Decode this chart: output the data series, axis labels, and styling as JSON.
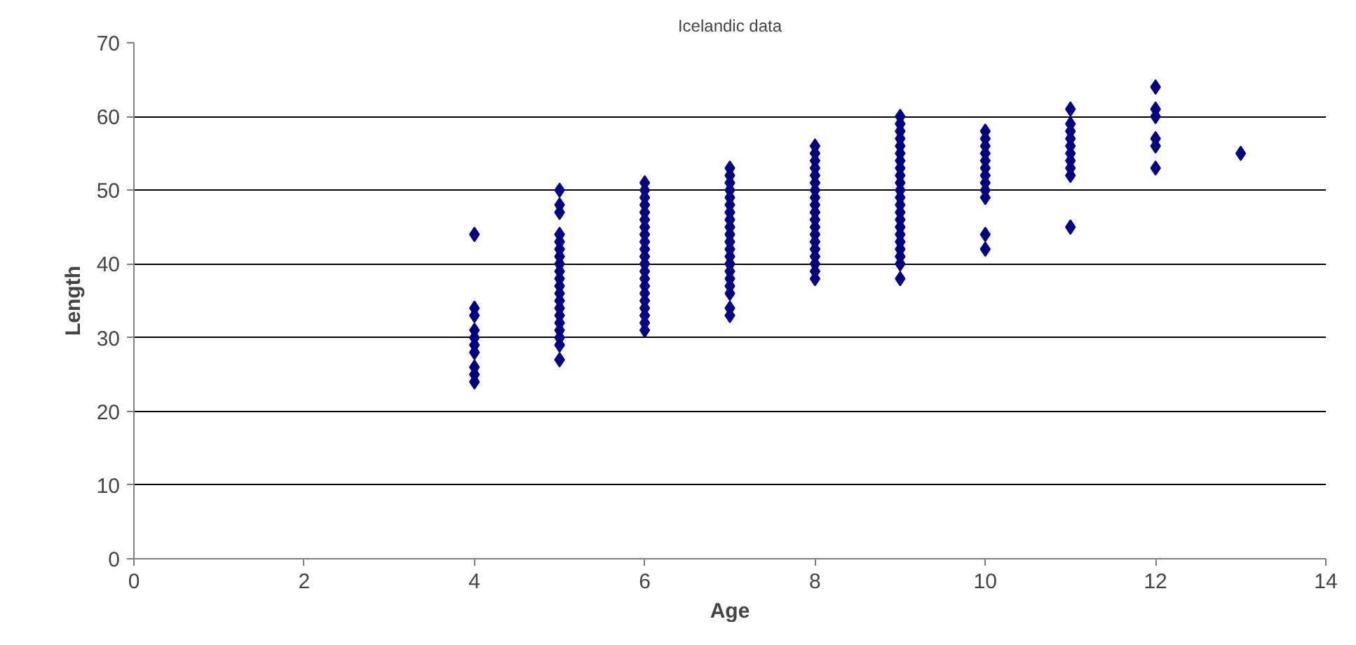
{
  "chart_data": {
    "type": "scatter",
    "title": "Icelandic data",
    "xlabel": "Age",
    "ylabel": "Length",
    "xlim": [
      0,
      14
    ],
    "xticks": [
      0,
      2,
      4,
      6,
      8,
      10,
      12,
      14
    ],
    "ylim": [
      0,
      70
    ],
    "yticks": [
      0,
      10,
      20,
      30,
      40,
      50,
      60,
      70
    ],
    "grid": "y",
    "marker": "diamond",
    "series": [
      {
        "color": "#000080",
        "x": [
          4,
          4,
          4,
          4,
          4,
          4,
          4,
          4,
          4,
          4,
          5,
          5,
          5,
          5,
          5,
          5,
          5,
          5,
          5,
          5,
          5,
          5,
          5,
          5,
          5,
          5,
          5,
          5,
          5,
          5,
          6,
          6,
          6,
          6,
          6,
          6,
          6,
          6,
          6,
          6,
          6,
          6,
          6,
          6,
          6,
          6,
          6,
          6,
          6,
          6,
          6,
          7,
          7,
          7,
          7,
          7,
          7,
          7,
          7,
          7,
          7,
          7,
          7,
          7,
          7,
          7,
          7,
          7,
          7,
          7,
          7,
          8,
          8,
          8,
          8,
          8,
          8,
          8,
          8,
          8,
          8,
          8,
          8,
          8,
          8,
          8,
          8,
          8,
          8,
          8,
          9,
          9,
          9,
          9,
          9,
          9,
          9,
          9,
          9,
          9,
          9,
          9,
          9,
          9,
          9,
          9,
          9,
          9,
          9,
          9,
          9,
          9,
          10,
          10,
          10,
          10,
          10,
          10,
          10,
          10,
          10,
          10,
          10,
          10,
          11,
          11,
          11,
          11,
          11,
          11,
          11,
          11,
          11,
          11,
          12,
          12,
          12,
          12,
          12,
          12,
          13
        ],
        "values": [
          44,
          34,
          33,
          31,
          30,
          29,
          28,
          26,
          25,
          24,
          50,
          48,
          47,
          44,
          43,
          42,
          41,
          40,
          39,
          38,
          37,
          36,
          35,
          34,
          33,
          32,
          31,
          30,
          29,
          27,
          31,
          32,
          33,
          34,
          35,
          36,
          37,
          38,
          39,
          40,
          41,
          42,
          43,
          44,
          45,
          46,
          47,
          48,
          49,
          50,
          51,
          33,
          34,
          36,
          37,
          38,
          39,
          40,
          41,
          42,
          43,
          44,
          45,
          46,
          47,
          48,
          49,
          50,
          51,
          52,
          53,
          38,
          39,
          40,
          41,
          42,
          43,
          44,
          45,
          46,
          47,
          48,
          49,
          50,
          51,
          52,
          53,
          54,
          55,
          56,
          38,
          40,
          41,
          42,
          43,
          44,
          45,
          46,
          47,
          48,
          49,
          50,
          51,
          52,
          53,
          54,
          55,
          56,
          57,
          58,
          59,
          60,
          42,
          44,
          49,
          50,
          51,
          52,
          53,
          54,
          55,
          56,
          57,
          58,
          45,
          52,
          53,
          54,
          55,
          56,
          57,
          58,
          59,
          61,
          53,
          56,
          57,
          60,
          61,
          64,
          55
        ]
      }
    ]
  }
}
